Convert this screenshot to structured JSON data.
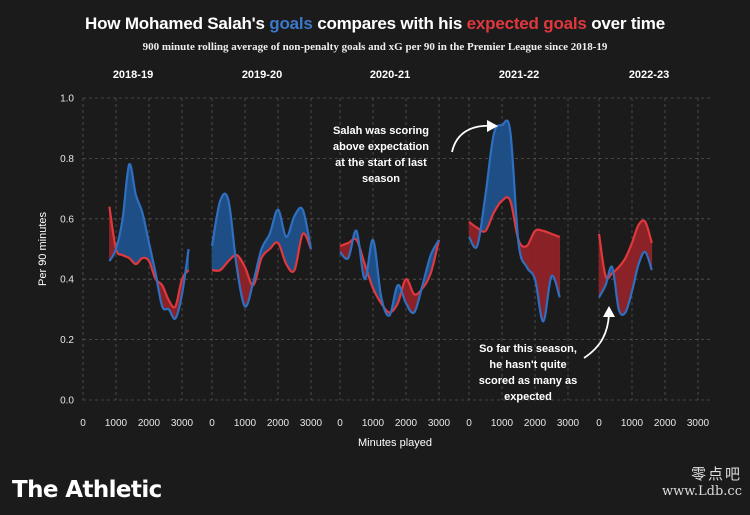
{
  "header": {
    "title_prefix": "How Mohamed Salah's ",
    "title_goals": "goals",
    "title_middle": " compares with his ",
    "title_xg": "expected goals",
    "title_suffix": " over time",
    "subtitle": "900 minute rolling average of non-penalty goals and xG per 90 in the Premier League since 2018-19"
  },
  "colors": {
    "goals": "#2f6fc0",
    "xg": "#e0383d",
    "background": "#1b1b1b",
    "grid": "#555555"
  },
  "logo": "The Athletic",
  "watermark": {
    "line1": "零点吧",
    "line2": "www.Ldb.cc"
  },
  "annotations": [
    {
      "lines": [
        "Salah was scoring",
        "above expectation",
        "at the start of last",
        "season"
      ]
    },
    {
      "lines": [
        "So far this season,",
        "he hasn't quite",
        "scored as many as",
        "expected"
      ]
    }
  ],
  "chart_data": {
    "type": "line",
    "ylabel": "Per 90 minutes",
    "xlabel": "Minutes played",
    "ylim": [
      0,
      1.0
    ],
    "yticks": [
      0.0,
      0.2,
      0.4,
      0.6,
      0.8,
      1.0
    ],
    "xlim": [
      0,
      3000
    ],
    "xticks": [
      0,
      1000,
      2000,
      3000
    ],
    "grid": true,
    "panels": [
      {
        "season": "2018-19",
        "x": [
          800,
          1000,
          1200,
          1400,
          1600,
          1800,
          2000,
          2200,
          2400,
          2600,
          2800,
          3000,
          3200
        ],
        "goals": [
          0.46,
          0.5,
          0.6,
          0.78,
          0.68,
          0.62,
          0.52,
          0.42,
          0.31,
          0.3,
          0.27,
          0.35,
          0.5
        ],
        "xg": [
          0.64,
          0.5,
          0.48,
          0.47,
          0.45,
          0.47,
          0.46,
          0.4,
          0.38,
          0.33,
          0.31,
          0.4,
          0.43
        ]
      },
      {
        "season": "2019-20",
        "x": [
          0,
          250,
          500,
          750,
          1000,
          1250,
          1500,
          1750,
          2000,
          2250,
          2500,
          2750,
          3000
        ],
        "goals": [
          0.51,
          0.66,
          0.66,
          0.44,
          0.31,
          0.39,
          0.5,
          0.55,
          0.63,
          0.54,
          0.61,
          0.63,
          0.5
        ],
        "xg": [
          0.43,
          0.43,
          0.46,
          0.48,
          0.44,
          0.38,
          0.47,
          0.5,
          0.52,
          0.45,
          0.43,
          0.55,
          0.5
        ]
      },
      {
        "season": "2020-21",
        "x": [
          0,
          250,
          500,
          750,
          1000,
          1250,
          1500,
          1750,
          2000,
          2250,
          2500,
          2750,
          3000
        ],
        "goals": [
          0.49,
          0.47,
          0.56,
          0.4,
          0.53,
          0.34,
          0.28,
          0.38,
          0.32,
          0.29,
          0.38,
          0.48,
          0.53
        ],
        "xg": [
          0.51,
          0.52,
          0.53,
          0.45,
          0.37,
          0.32,
          0.29,
          0.32,
          0.4,
          0.35,
          0.37,
          0.42,
          0.53
        ]
      },
      {
        "season": "2021-22",
        "x": [
          0,
          250,
          500,
          750,
          1000,
          1250,
          1500,
          1750,
          2000,
          2250,
          2500,
          2750
        ],
        "goals": [
          0.54,
          0.51,
          0.68,
          0.88,
          0.91,
          0.89,
          0.52,
          0.44,
          0.4,
          0.26,
          0.41,
          0.34
        ],
        "xg": [
          0.59,
          0.57,
          0.56,
          0.62,
          0.66,
          0.66,
          0.53,
          0.51,
          0.56,
          0.56,
          0.55,
          0.54
        ]
      },
      {
        "season": "2022-23",
        "x": [
          0,
          200,
          400,
          600,
          800,
          1000,
          1200,
          1400,
          1600
        ],
        "goals": [
          0.34,
          0.38,
          0.44,
          0.3,
          0.29,
          0.36,
          0.45,
          0.49,
          0.43
        ],
        "xg": [
          0.55,
          0.41,
          0.42,
          0.44,
          0.47,
          0.52,
          0.58,
          0.59,
          0.52
        ]
      }
    ]
  }
}
